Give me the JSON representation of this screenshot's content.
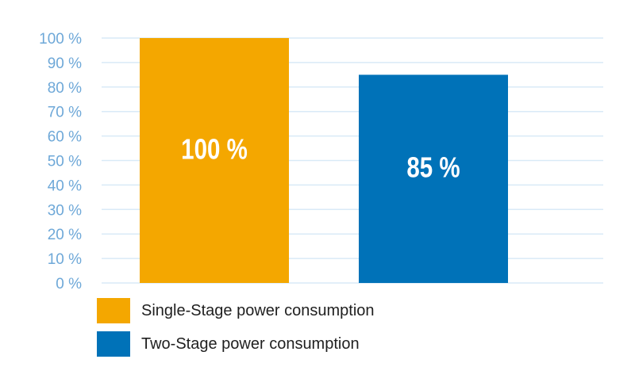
{
  "chart_data": {
    "type": "bar",
    "categories": [
      "Single-Stage power consumption",
      "Two-Stage power consumption"
    ],
    "values": [
      100,
      85
    ],
    "value_labels": [
      "100 %",
      "85 %"
    ],
    "colors": [
      "#F4A700",
      "#0072B8"
    ],
    "title": "",
    "xlabel": "",
    "ylabel": "",
    "ylim": [
      0,
      100
    ],
    "y_ticks": [
      0,
      10,
      20,
      30,
      40,
      50,
      60,
      70,
      80,
      90,
      100
    ],
    "y_tick_labels": [
      "0 %",
      "10 %",
      "20 %",
      "30 %",
      "40 %",
      "50 %",
      "60 %",
      "70 %",
      "80 %",
      "90 %",
      "100 %"
    ],
    "grid": true,
    "grid_color": "#D9EAF7",
    "tick_label_color": "#6EA8D8",
    "legend_placement": "bottom-left"
  },
  "legend": {
    "items": [
      {
        "label": "Single-Stage power consumption",
        "color": "#F4A700"
      },
      {
        "label": "Two-Stage power consumption",
        "color": "#0072B8"
      }
    ]
  }
}
